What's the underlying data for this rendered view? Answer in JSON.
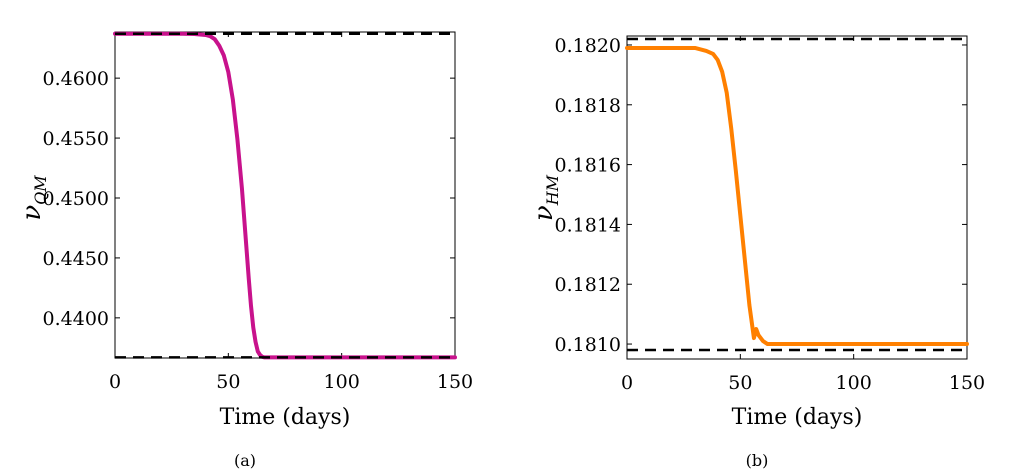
{
  "chart_data": [
    {
      "type": "line",
      "caption": "(a)",
      "xlabel": "Time (days)",
      "ylabel": {
        "symbol": "ν",
        "subscript": "QM"
      },
      "xlim": [
        0,
        150
      ],
      "ylim": [
        0.43665,
        0.46385
      ],
      "xticks": [
        "0",
        "50",
        "100",
        "150"
      ],
      "xtick_values": [
        0,
        50,
        100,
        150
      ],
      "yticks": [
        "0.4400",
        "0.4450",
        "0.4500",
        "0.4550",
        "0.4600"
      ],
      "ytick_values": [
        0.44,
        0.445,
        0.45,
        0.455,
        0.46
      ],
      "series": [
        {
          "color": "#c8128c",
          "style": "solid",
          "x": [
            0,
            10,
            20,
            30,
            35,
            40,
            42,
            44,
            46,
            48,
            50,
            52,
            54,
            56,
            57,
            58,
            59,
            60,
            61,
            62,
            63,
            64,
            65,
            66,
            68,
            70,
            80,
            100,
            125,
            150
          ],
          "y": [
            0.4637,
            0.4637,
            0.4637,
            0.4637,
            0.46368,
            0.4636,
            0.4635,
            0.46325,
            0.4627,
            0.4619,
            0.4605,
            0.4582,
            0.4549,
            0.4508,
            0.4483,
            0.4458,
            0.4433,
            0.441,
            0.4392,
            0.438,
            0.4372,
            0.4369,
            0.43675,
            0.4367,
            0.4367,
            0.4367,
            0.4367,
            0.4367,
            0.4367,
            0.4367
          ]
        }
      ],
      "reference_lines": [
        {
          "y": 0.4637,
          "color": "#000000",
          "style": "dashed"
        },
        {
          "y": 0.4367,
          "color": "#000000",
          "style": "dashed"
        }
      ]
    },
    {
      "type": "line",
      "caption": "(b)",
      "xlabel": "Time (days)",
      "ylabel": {
        "symbol": "ν",
        "subscript": "HM"
      },
      "xlim": [
        0,
        150
      ],
      "ylim": [
        0.18095,
        0.18203
      ],
      "xticks": [
        "0",
        "50",
        "100",
        "150"
      ],
      "xtick_values": [
        0,
        50,
        100,
        150
      ],
      "yticks": [
        "0.1810",
        "0.1812",
        "0.1814",
        "0.1816",
        "0.1818",
        "0.1820"
      ],
      "ytick_values": [
        0.181,
        0.1812,
        0.1814,
        0.1816,
        0.1818,
        0.182
      ],
      "series": [
        {
          "color": "#ff8000",
          "style": "solid",
          "x": [
            0,
            10,
            20,
            30,
            35,
            38,
            40,
            42,
            44,
            46,
            48,
            50,
            52,
            54,
            56,
            57,
            58,
            59,
            60,
            61,
            62,
            63,
            64,
            65,
            66,
            68,
            70,
            80,
            100,
            125,
            150
          ],
          "y": [
            0.18199,
            0.18199,
            0.18199,
            0.18199,
            0.18198,
            0.18197,
            0.18195,
            0.18191,
            0.18184,
            0.18172,
            0.18158,
            0.18143,
            0.18128,
            0.18113,
            0.18102,
            0.18105,
            0.18103,
            0.18102,
            0.18101,
            0.181005,
            0.181,
            0.181,
            0.181,
            0.181,
            0.181,
            0.181,
            0.181,
            0.181,
            0.181,
            0.181,
            0.181
          ]
        }
      ],
      "reference_lines": [
        {
          "y": 0.18202,
          "color": "#000000",
          "style": "dashed"
        },
        {
          "y": 0.18098,
          "color": "#000000",
          "style": "dashed"
        }
      ]
    }
  ]
}
